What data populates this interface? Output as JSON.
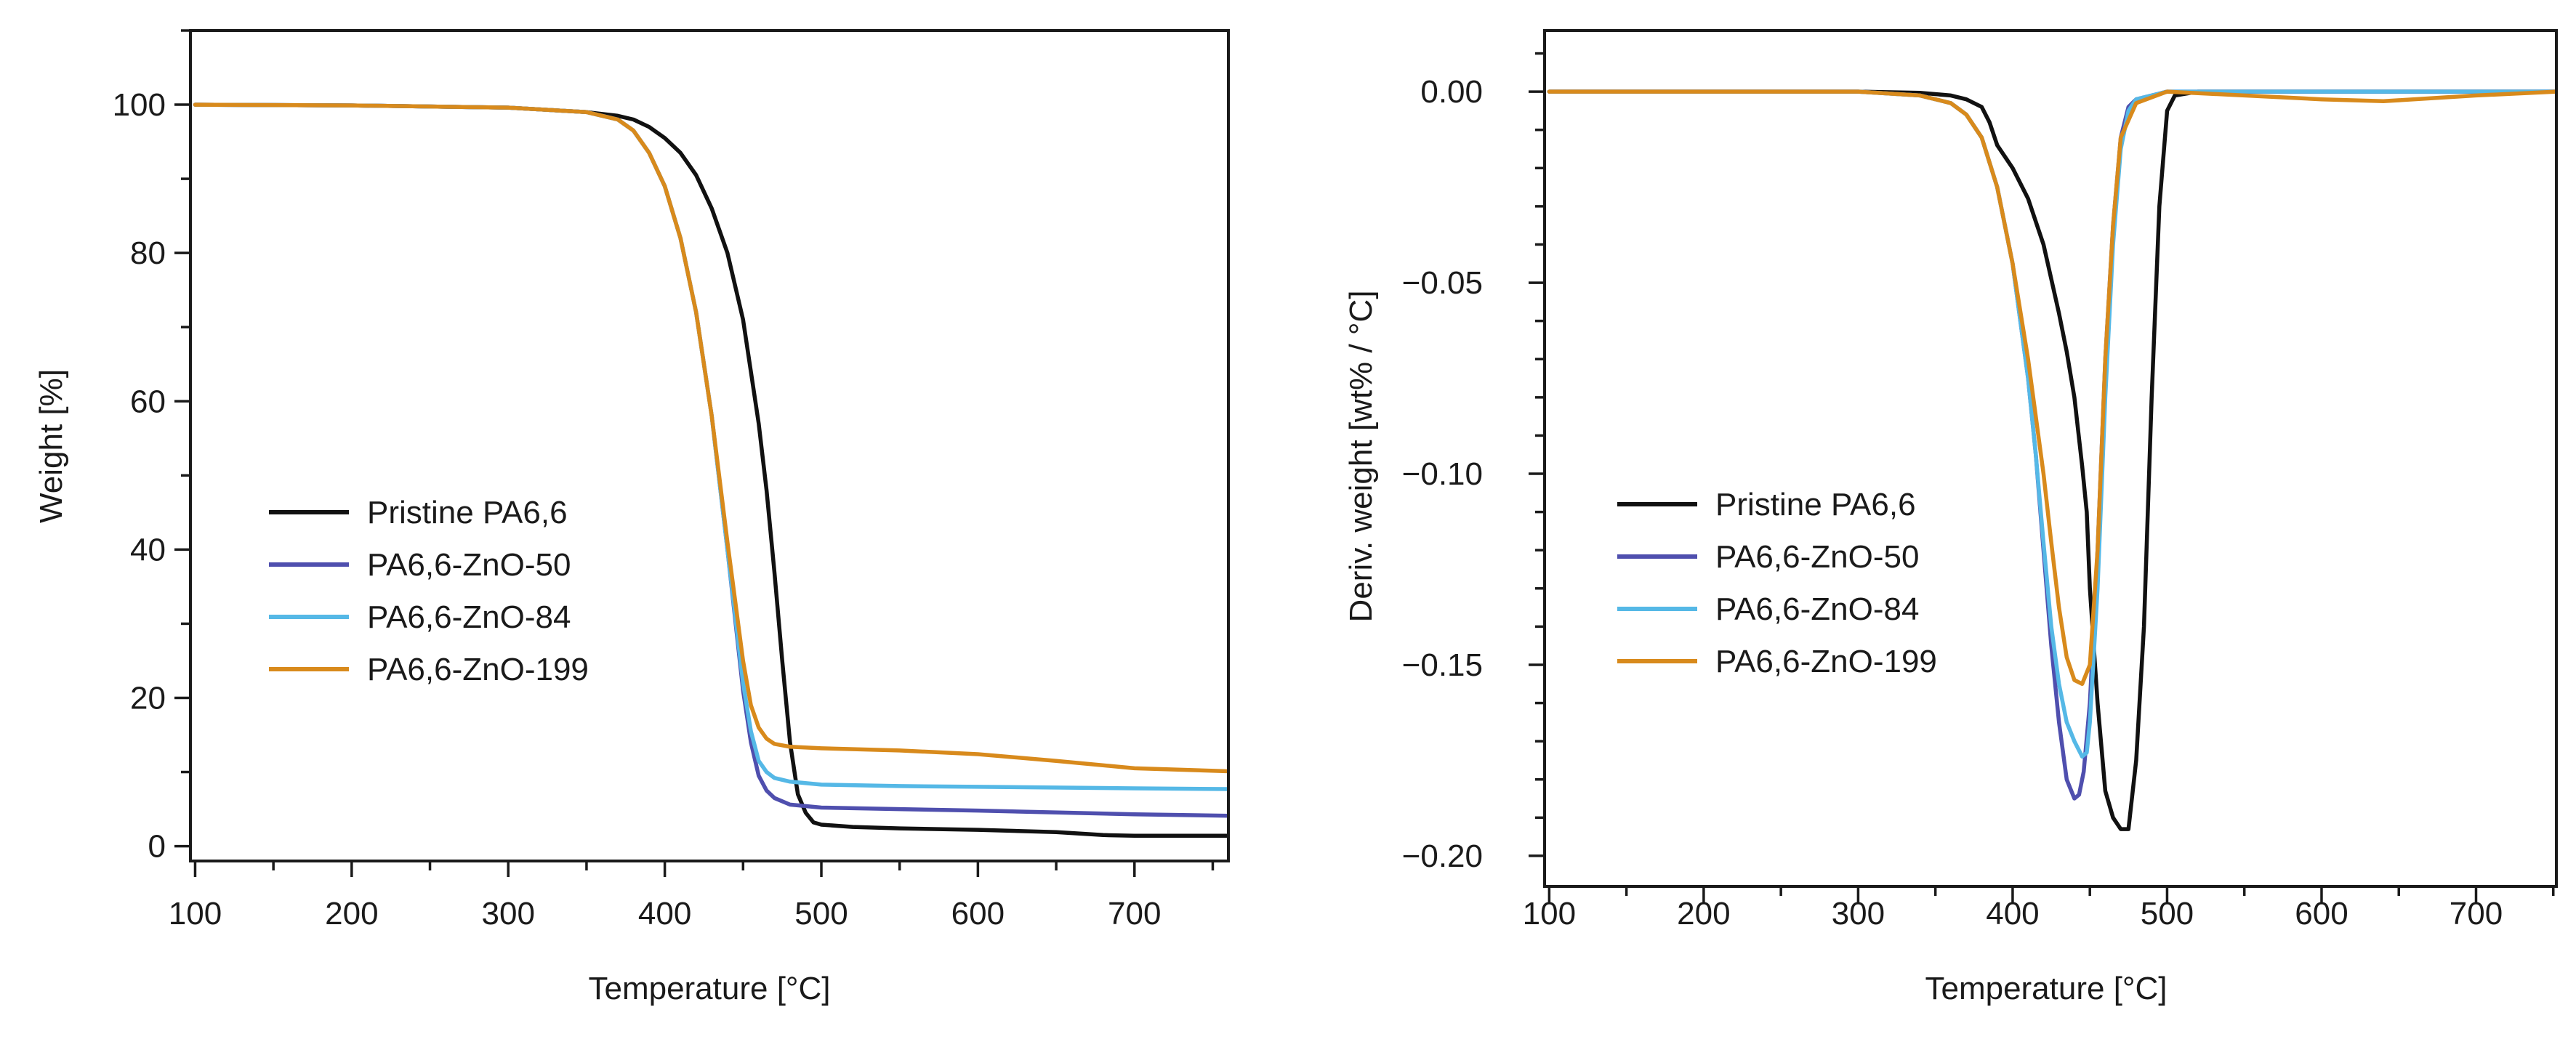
{
  "chart_data": [
    {
      "type": "line",
      "title": "",
      "xlabel": "Temperature [°C]",
      "ylabel": "Weight [%]",
      "xlim": [
        97,
        760
      ],
      "ylim": [
        -2,
        110
      ],
      "x_ticks": [
        100,
        200,
        300,
        400,
        500,
        600,
        700
      ],
      "x_minor_step": 50,
      "y_ticks": [
        0,
        20,
        40,
        60,
        80,
        100
      ],
      "y_minor_step": 10,
      "x_tick_labels": [
        "100",
        "200",
        "300",
        "400",
        "500",
        "600",
        "700"
      ],
      "y_tick_labels": [
        "0",
        "20",
        "40",
        "60",
        "80",
        "100"
      ],
      "legend": {
        "placement": "center-left",
        "entries": [
          "Pristine PA6,6",
          "PA6,6-ZnO-50",
          "PA6,6-ZnO-84",
          "PA6,6-ZnO-199"
        ]
      },
      "series": [
        {
          "name": "Pristine PA6,6",
          "color": "#111111",
          "x": [
            100,
            200,
            300,
            350,
            370,
            380,
            390,
            400,
            410,
            420,
            430,
            440,
            450,
            460,
            465,
            470,
            475,
            480,
            485,
            490,
            495,
            500,
            520,
            550,
            600,
            650,
            680,
            700,
            760
          ],
          "y": [
            100,
            99.9,
            99.6,
            99,
            98.5,
            98,
            97,
            95.5,
            93.5,
            90.5,
            86,
            80,
            71,
            57,
            48,
            37,
            25,
            14,
            7,
            4.5,
            3.2,
            2.9,
            2.6,
            2.4,
            2.2,
            1.9,
            1.5,
            1.4,
            1.4
          ]
        },
        {
          "name": "PA6,6-ZnO-50",
          "color": "#4F4FAE",
          "x": [
            100,
            200,
            300,
            350,
            370,
            380,
            390,
            400,
            410,
            420,
            430,
            440,
            450,
            455,
            460,
            465,
            470,
            480,
            500,
            550,
            600,
            700,
            760
          ],
          "y": [
            100,
            99.9,
            99.6,
            99,
            98,
            96.5,
            93.5,
            89,
            82,
            72,
            58,
            40,
            21,
            14,
            9.5,
            7.5,
            6.5,
            5.6,
            5.2,
            5,
            4.8,
            4.3,
            4.1
          ]
        },
        {
          "name": "PA6,6-ZnO-84",
          "color": "#55B8E6",
          "x": [
            100,
            200,
            300,
            350,
            370,
            380,
            390,
            400,
            410,
            420,
            430,
            440,
            450,
            455,
            460,
            465,
            470,
            480,
            500,
            550,
            600,
            700,
            760
          ],
          "y": [
            100,
            99.9,
            99.6,
            99,
            98,
            96.5,
            93.5,
            89,
            82,
            72,
            58,
            40,
            22,
            15.5,
            11.5,
            10,
            9.2,
            8.7,
            8.3,
            8.1,
            8,
            7.8,
            7.7
          ]
        },
        {
          "name": "PA6,6-ZnO-199",
          "color": "#D88A1C",
          "x": [
            100,
            200,
            300,
            350,
            370,
            380,
            390,
            400,
            410,
            420,
            430,
            440,
            450,
            455,
            460,
            465,
            470,
            480,
            500,
            550,
            600,
            650,
            700,
            760
          ],
          "y": [
            100,
            99.9,
            99.6,
            99,
            98,
            96.5,
            93.5,
            89,
            82,
            72,
            58,
            41,
            25,
            19,
            16,
            14.5,
            13.8,
            13.4,
            13.2,
            12.9,
            12.4,
            11.5,
            10.5,
            10.1
          ]
        }
      ]
    },
    {
      "type": "line",
      "title": "",
      "xlabel": "Temperature [°C]",
      "ylabel": "Deriv. weight [wt% / °C]",
      "xlim": [
        97,
        752
      ],
      "ylim": [
        -0.208,
        0.016
      ],
      "x_ticks": [
        100,
        200,
        300,
        400,
        500,
        600,
        700
      ],
      "x_minor_step": 50,
      "y_ticks": [
        0.0,
        -0.05,
        -0.1,
        -0.15,
        -0.2
      ],
      "y_minor_step": 0.01,
      "x_tick_labels": [
        "100",
        "200",
        "300",
        "400",
        "500",
        "600",
        "700"
      ],
      "y_tick_labels": [
        "0.00",
        "−0.05",
        "−0.10",
        "−0.15",
        "−0.20"
      ],
      "legend": {
        "placement": "center-left",
        "entries": [
          "Pristine PA6,6",
          "PA6,6-ZnO-50",
          "PA6,6-ZnO-84",
          "PA6,6-ZnO-199"
        ]
      },
      "series": [
        {
          "name": "Pristine PA6,6",
          "color": "#111111",
          "x": [
            100,
            200,
            300,
            340,
            360,
            370,
            380,
            385,
            390,
            400,
            410,
            420,
            430,
            435,
            440,
            445,
            448,
            450,
            455,
            460,
            465,
            470,
            475,
            480,
            485,
            490,
            495,
            500,
            505,
            520,
            600,
            752
          ],
          "y": [
            0,
            0,
            0,
            -0.0003,
            -0.001,
            -0.002,
            -0.004,
            -0.008,
            -0.014,
            -0.02,
            -0.028,
            -0.04,
            -0.058,
            -0.068,
            -0.08,
            -0.098,
            -0.11,
            -0.13,
            -0.16,
            -0.183,
            -0.19,
            -0.193,
            -0.193,
            -0.175,
            -0.14,
            -0.08,
            -0.03,
            -0.005,
            -0.001,
            0,
            0,
            0
          ]
        },
        {
          "name": "PA6,6-ZnO-50",
          "color": "#4F4FAE",
          "x": [
            100,
            200,
            300,
            340,
            360,
            370,
            380,
            390,
            400,
            410,
            415,
            420,
            425,
            430,
            435,
            440,
            443,
            446,
            450,
            455,
            460,
            465,
            470,
            475,
            480,
            500,
            600,
            752
          ],
          "y": [
            0,
            0,
            0,
            -0.001,
            -0.003,
            -0.006,
            -0.012,
            -0.025,
            -0.045,
            -0.075,
            -0.095,
            -0.12,
            -0.145,
            -0.165,
            -0.18,
            -0.185,
            -0.184,
            -0.178,
            -0.16,
            -0.12,
            -0.07,
            -0.035,
            -0.012,
            -0.004,
            -0.002,
            0,
            0,
            0
          ]
        },
        {
          "name": "PA6,6-ZnO-84",
          "color": "#55B8E6",
          "x": [
            100,
            200,
            300,
            340,
            360,
            370,
            380,
            390,
            400,
            410,
            415,
            420,
            425,
            430,
            435,
            440,
            445,
            448,
            450,
            455,
            460,
            465,
            470,
            475,
            480,
            500,
            600,
            752
          ],
          "y": [
            0,
            0,
            0,
            -0.001,
            -0.003,
            -0.006,
            -0.012,
            -0.025,
            -0.045,
            -0.075,
            -0.095,
            -0.118,
            -0.14,
            -0.155,
            -0.165,
            -0.17,
            -0.174,
            -0.173,
            -0.165,
            -0.13,
            -0.08,
            -0.04,
            -0.015,
            -0.005,
            -0.002,
            0,
            0,
            0
          ]
        },
        {
          "name": "PA6,6-ZnO-199",
          "color": "#D88A1C",
          "x": [
            100,
            200,
            300,
            340,
            360,
            370,
            380,
            390,
            400,
            410,
            420,
            425,
            430,
            435,
            440,
            445,
            450,
            455,
            460,
            465,
            470,
            480,
            500,
            550,
            600,
            640,
            700,
            752
          ],
          "y": [
            0,
            0,
            0,
            -0.001,
            -0.003,
            -0.006,
            -0.012,
            -0.025,
            -0.045,
            -0.07,
            -0.1,
            -0.118,
            -0.135,
            -0.148,
            -0.154,
            -0.155,
            -0.15,
            -0.12,
            -0.07,
            -0.035,
            -0.012,
            -0.003,
            0,
            -0.001,
            -0.002,
            -0.0025,
            -0.001,
            0
          ]
        }
      ]
    }
  ]
}
